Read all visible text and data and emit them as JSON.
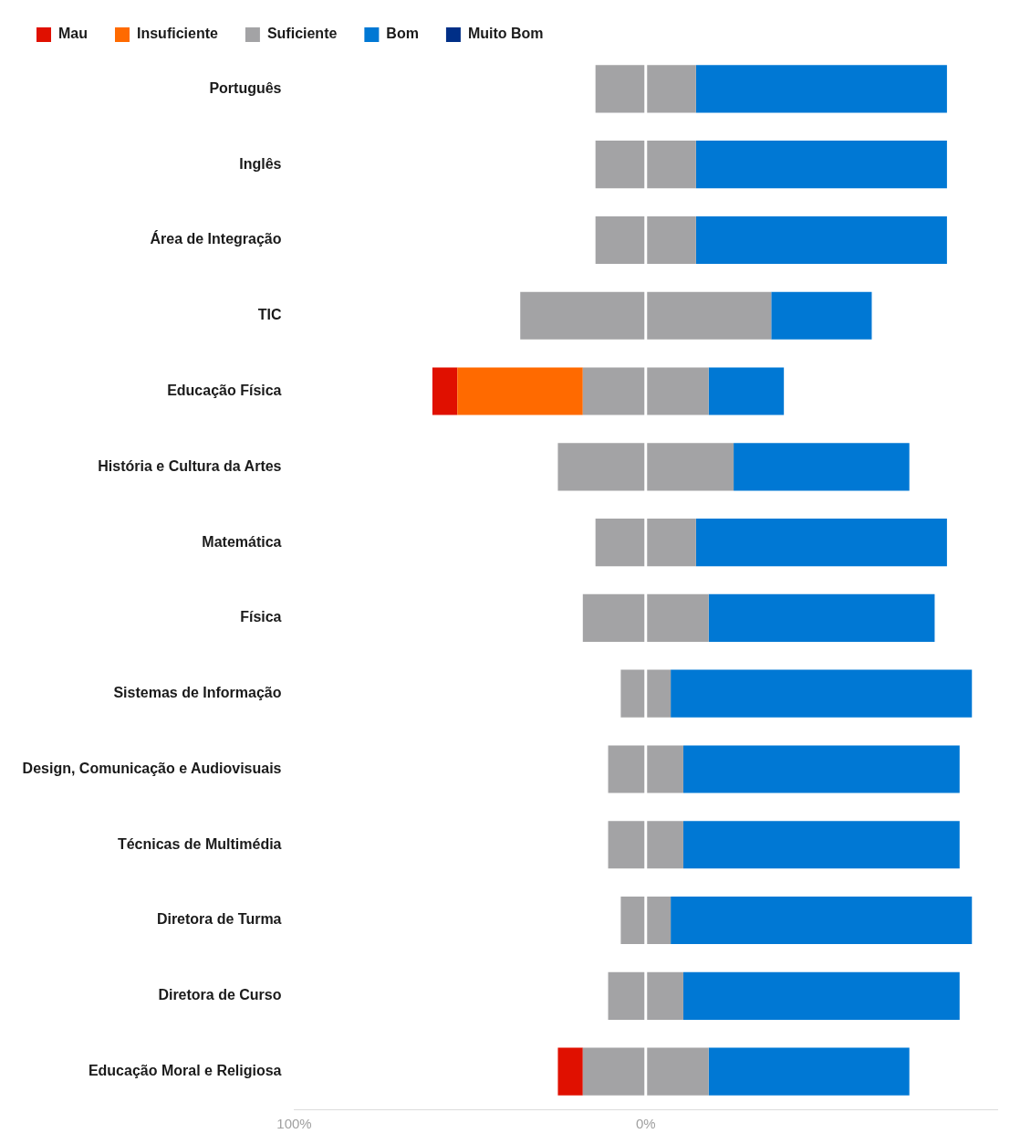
{
  "chart_data": {
    "type": "bar",
    "orientation": "horizontal",
    "stacked": true,
    "categories": [
      "Português",
      "Inglês",
      "Área de Integração",
      "TIC",
      "Educação Física",
      "História e Cultura da Artes",
      "Matemática",
      "Física",
      "Sistemas de Informação",
      "Design, Comunicação e Audiovisuais",
      "Técnicas de Multimédia",
      "Diretora de Turma",
      "Diretora de Curso",
      "Educação Moral e Religiosa"
    ],
    "series": [
      {
        "name": "Suficiente",
        "color": "#a3a3a5",
        "values": [
          -14.3,
          -14.3,
          -14.3,
          -35.7,
          -17.9,
          -25,
          -14.3,
          -17.9,
          -7.1,
          -10.7,
          -10.7,
          -7.1,
          -10.7,
          -17.9
        ]
      },
      {
        "name": "Insuficiente",
        "color": "#ff6a00",
        "values": [
          0,
          0,
          0,
          0,
          -35.7,
          0,
          0,
          0,
          0,
          0,
          0,
          0,
          0,
          0
        ]
      },
      {
        "name": "Mau",
        "color": "#e01000",
        "values": [
          0,
          0,
          0,
          0,
          -7.1,
          0,
          0,
          0,
          0,
          0,
          0,
          0,
          0,
          -7.1
        ]
      },
      {
        "color": "#a3a3a5",
        "values": [
          14.3,
          14.3,
          14.3,
          35.7,
          17.9,
          25,
          14.3,
          17.9,
          7.1,
          10.7,
          10.7,
          7.1,
          10.7,
          17.9
        ]
      },
      {
        "name": "Bom",
        "color": "#0078d4",
        "values": [
          71.4,
          71.4,
          71.4,
          28.6,
          21.4,
          50,
          71.4,
          64.3,
          85.7,
          78.6,
          78.6,
          85.7,
          78.6,
          57.1
        ]
      },
      {
        "name": "Muito Bom",
        "color": "#002f87",
        "values": [
          0,
          0,
          0,
          0,
          0,
          0,
          0,
          0,
          0,
          0,
          0,
          0,
          0,
          0
        ]
      }
    ],
    "xlim": [
      -100,
      100
    ],
    "xticks": [
      {
        "value": -100,
        "label": "100%"
      },
      {
        "value": 0,
        "label": "0%"
      }
    ],
    "ref_lines": [
      {
        "axis": "x",
        "value": 0,
        "color": "#ffffff"
      }
    ],
    "legend": "top left"
  }
}
